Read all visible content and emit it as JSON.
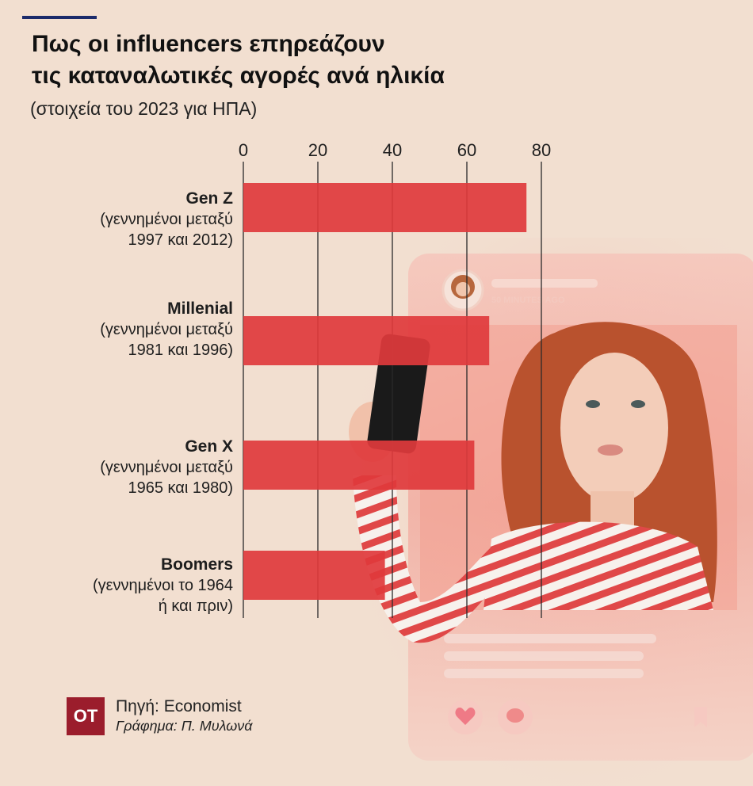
{
  "header": {
    "title_line1": "Πως οι influencers επηρεάζουν",
    "title_line2": "τις καταναλωτικές αγορές ανά ηλικία",
    "subtitle": "(στοιχεία του 2023 για ΗΠΑ)"
  },
  "chart_data": {
    "type": "bar",
    "orientation": "horizontal",
    "title": "Πως οι influencers επηρεάζουν τις καταναλωτικές αγορές ανά ηλικία",
    "subtitle": "(στοιχεία του 2023 για ΗΠΑ)",
    "xlabel": "",
    "ylabel": "",
    "xlim": [
      0,
      80
    ],
    "ticks": [
      0,
      20,
      40,
      60,
      80
    ],
    "grid": true,
    "legend": "none",
    "bar_color": "#e03a3c",
    "categories": [
      {
        "name": "Gen Z",
        "line2": "(γεννημένοι μεταξύ",
        "line3": "1997 και 2012)"
      },
      {
        "name": "Millenial",
        "line2": "(γεννημένοι μεταξύ",
        "line3": "1981 και 1996)"
      },
      {
        "name": "Gen X",
        "line2": "(γεννημένοι μεταξύ",
        "line3": "1965 και 1980)"
      },
      {
        "name": "Boomers",
        "line2": "(γεννημένοι το 1964",
        "line3": "ή και πριν)"
      }
    ],
    "values": [
      76,
      66,
      62,
      38
    ]
  },
  "decor": {
    "post_time": "50 MINUTES AGO",
    "icons": [
      "avatar-icon",
      "heart-icon",
      "comment-icon",
      "bookmark-icon"
    ]
  },
  "footer": {
    "logo_text": "OT",
    "source": "Πηγή: Economist",
    "credit": "Γράφημα: Π. Μυλωνά"
  },
  "colors": {
    "background": "#f2dfd0",
    "bar": "#e03a3c",
    "accent_rule": "#1c2b6b",
    "logo": "#9b1d2c"
  }
}
